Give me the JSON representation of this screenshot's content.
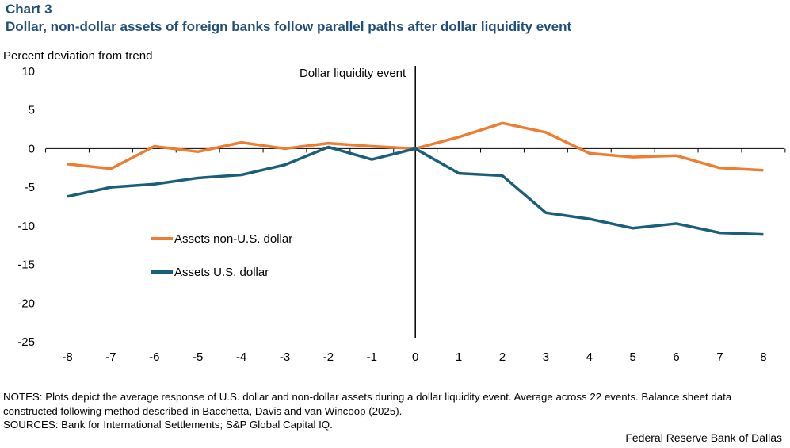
{
  "header": {
    "label": "Chart 3",
    "title": "Dollar, non-dollar assets of foreign banks follow parallel paths after dollar liquidity event"
  },
  "notes": "NOTES: Plots depict the average response of U.S. dollar and non-dollar assets during a dollar liquidity event. Average across 22 events. Balance sheet data constructed following method described in Bacchetta, Davis and van Wincoop (2025).",
  "sources": "SOURCES: Bank for International  Settlements; S&P Global Capital IQ.",
  "credit": "Federal Reserve Bank of Dallas",
  "chart_data": {
    "type": "line",
    "ylabel": "Percent deviation from trend",
    "xlabel": "",
    "annotation": "Dollar liquidity event",
    "ylim": [
      -25,
      10
    ],
    "yticks": [
      10,
      5,
      0,
      -5,
      -10,
      -15,
      -20,
      -25
    ],
    "x": [
      -8,
      -7,
      -6,
      -5,
      -4,
      -3,
      -2,
      -1,
      0,
      1,
      2,
      3,
      4,
      5,
      6,
      7,
      8
    ],
    "legend_position": "center-left",
    "series": [
      {
        "name": "Assets non-U.S. dollar",
        "color": "#ed7d31",
        "values": [
          -2.0,
          -2.6,
          0.3,
          -0.4,
          0.8,
          0.0,
          0.7,
          0.3,
          0.0,
          1.5,
          3.3,
          2.1,
          -0.6,
          -1.1,
          -0.9,
          -2.5,
          -2.8
        ]
      },
      {
        "name": "Assets U.S. dollar",
        "color": "#1a5f7a",
        "values": [
          -6.2,
          -5.0,
          -4.6,
          -3.8,
          -3.4,
          -2.1,
          0.2,
          -1.4,
          0.0,
          -3.2,
          -3.5,
          -8.3,
          -9.1,
          -10.3,
          -9.7,
          -10.9,
          -11.1
        ]
      }
    ]
  }
}
